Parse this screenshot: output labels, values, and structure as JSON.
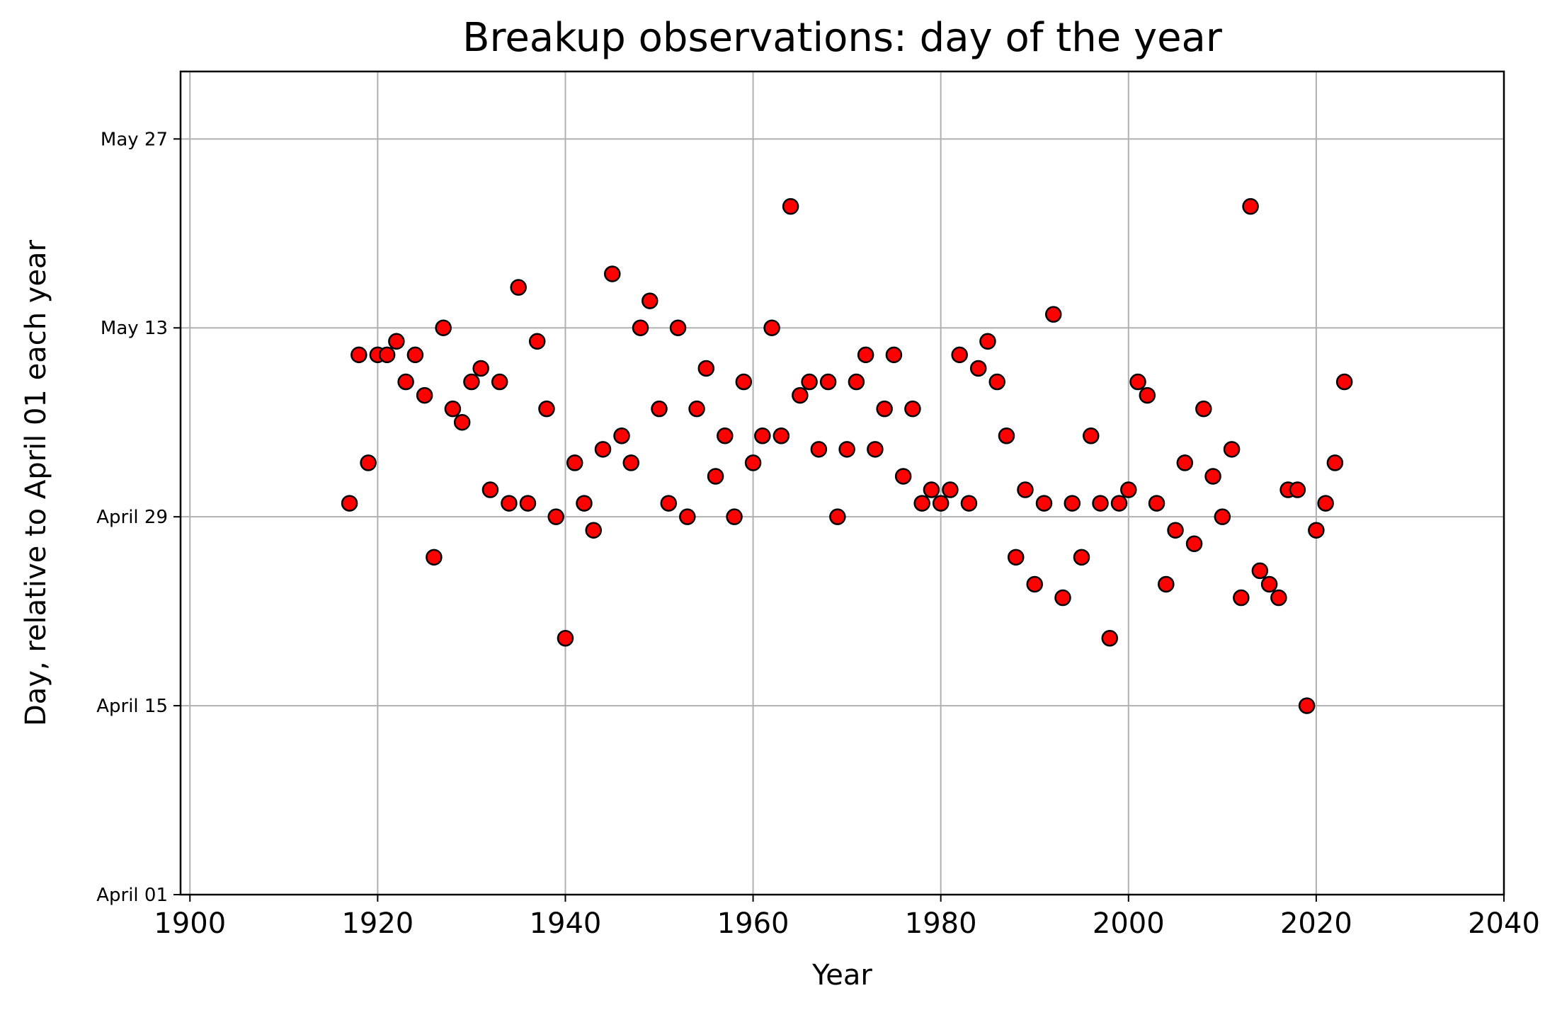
{
  "chart_data": {
    "type": "scatter",
    "title": "Breakup observations: day of the year",
    "xlabel": "Year",
    "ylabel": "Day, relative to April 01 each year",
    "xlim": [
      1899,
      2040
    ],
    "ylim_dates": [
      "April 01",
      "June 01"
    ],
    "x_ticks": [
      1900,
      1920,
      1940,
      1960,
      1980,
      2000,
      2020,
      2040
    ],
    "x_tick_labels": [
      "1900",
      "1920",
      "1940",
      "1960",
      "1980",
      "2000",
      "2020",
      "2040"
    ],
    "y_ticks": [
      "April 01",
      "April 15",
      "April 29",
      "May 13",
      "May 27"
    ],
    "y_tick_labels": [
      "April 01",
      "April 15",
      "April 29",
      "May 13",
      "May 27"
    ],
    "grid": true,
    "marker_color": "#ff0000",
    "marker_edge_color": "#000000",
    "points": [
      {
        "x": 1917,
        "y": "April 30"
      },
      {
        "x": 1918,
        "y": "May 11"
      },
      {
        "x": 1919,
        "y": "May 3"
      },
      {
        "x": 1920,
        "y": "May 11"
      },
      {
        "x": 1921,
        "y": "May 11"
      },
      {
        "x": 1922,
        "y": "May 12"
      },
      {
        "x": 1923,
        "y": "May 9"
      },
      {
        "x": 1924,
        "y": "May 11"
      },
      {
        "x": 1925,
        "y": "May 8"
      },
      {
        "x": 1926,
        "y": "April 26"
      },
      {
        "x": 1927,
        "y": "May 13"
      },
      {
        "x": 1928,
        "y": "May 7"
      },
      {
        "x": 1929,
        "y": "May 6"
      },
      {
        "x": 1930,
        "y": "May 9"
      },
      {
        "x": 1931,
        "y": "May 10"
      },
      {
        "x": 1932,
        "y": "May 1"
      },
      {
        "x": 1933,
        "y": "May 9"
      },
      {
        "x": 1934,
        "y": "April 30"
      },
      {
        "x": 1935,
        "y": "May 16"
      },
      {
        "x": 1936,
        "y": "April 30"
      },
      {
        "x": 1937,
        "y": "May 12"
      },
      {
        "x": 1938,
        "y": "May 7"
      },
      {
        "x": 1939,
        "y": "April 29"
      },
      {
        "x": 1940,
        "y": "April 20"
      },
      {
        "x": 1941,
        "y": "May 3"
      },
      {
        "x": 1942,
        "y": "April 30"
      },
      {
        "x": 1943,
        "y": "April 28"
      },
      {
        "x": 1944,
        "y": "May 4"
      },
      {
        "x": 1945,
        "y": "May 17"
      },
      {
        "x": 1946,
        "y": "May 5"
      },
      {
        "x": 1947,
        "y": "May 3"
      },
      {
        "x": 1948,
        "y": "May 13"
      },
      {
        "x": 1949,
        "y": "May 15"
      },
      {
        "x": 1950,
        "y": "May 7"
      },
      {
        "x": 1951,
        "y": "April 30"
      },
      {
        "x": 1952,
        "y": "May 13"
      },
      {
        "x": 1953,
        "y": "April 29"
      },
      {
        "x": 1954,
        "y": "May 7"
      },
      {
        "x": 1955,
        "y": "May 10"
      },
      {
        "x": 1956,
        "y": "May 2"
      },
      {
        "x": 1957,
        "y": "May 5"
      },
      {
        "x": 1958,
        "y": "April 29"
      },
      {
        "x": 1959,
        "y": "May 9"
      },
      {
        "x": 1960,
        "y": "May 3"
      },
      {
        "x": 1961,
        "y": "May 5"
      },
      {
        "x": 1962,
        "y": "May 13"
      },
      {
        "x": 1963,
        "y": "May 5"
      },
      {
        "x": 1964,
        "y": "May 22"
      },
      {
        "x": 1965,
        "y": "May 8"
      },
      {
        "x": 1966,
        "y": "May 9"
      },
      {
        "x": 1967,
        "y": "May 4"
      },
      {
        "x": 1968,
        "y": "May 9"
      },
      {
        "x": 1969,
        "y": "April 29"
      },
      {
        "x": 1970,
        "y": "May 4"
      },
      {
        "x": 1971,
        "y": "May 9"
      },
      {
        "x": 1972,
        "y": "May 11"
      },
      {
        "x": 1973,
        "y": "May 4"
      },
      {
        "x": 1974,
        "y": "May 7"
      },
      {
        "x": 1975,
        "y": "May 11"
      },
      {
        "x": 1976,
        "y": "May 2"
      },
      {
        "x": 1977,
        "y": "May 7"
      },
      {
        "x": 1978,
        "y": "April 30"
      },
      {
        "x": 1979,
        "y": "May 1"
      },
      {
        "x": 1980,
        "y": "April 30"
      },
      {
        "x": 1981,
        "y": "May 1"
      },
      {
        "x": 1982,
        "y": "May 11"
      },
      {
        "x": 1983,
        "y": "April 30"
      },
      {
        "x": 1984,
        "y": "May 10"
      },
      {
        "x": 1985,
        "y": "May 12"
      },
      {
        "x": 1986,
        "y": "May 9"
      },
      {
        "x": 1987,
        "y": "May 5"
      },
      {
        "x": 1988,
        "y": "April 26"
      },
      {
        "x": 1989,
        "y": "May 1"
      },
      {
        "x": 1990,
        "y": "April 24"
      },
      {
        "x": 1991,
        "y": "April 30"
      },
      {
        "x": 1992,
        "y": "May 14"
      },
      {
        "x": 1993,
        "y": "April 23"
      },
      {
        "x": 1994,
        "y": "April 30"
      },
      {
        "x": 1995,
        "y": "April 26"
      },
      {
        "x": 1996,
        "y": "May 5"
      },
      {
        "x": 1997,
        "y": "April 30"
      },
      {
        "x": 1998,
        "y": "April 20"
      },
      {
        "x": 1999,
        "y": "April 30"
      },
      {
        "x": 2000,
        "y": "May 1"
      },
      {
        "x": 2001,
        "y": "May 9"
      },
      {
        "x": 2002,
        "y": "May 8"
      },
      {
        "x": 2003,
        "y": "April 30"
      },
      {
        "x": 2004,
        "y": "April 24"
      },
      {
        "x": 2005,
        "y": "April 28"
      },
      {
        "x": 2006,
        "y": "May 3"
      },
      {
        "x": 2007,
        "y": "April 27"
      },
      {
        "x": 2008,
        "y": "May 7"
      },
      {
        "x": 2009,
        "y": "May 2"
      },
      {
        "x": 2010,
        "y": "April 29"
      },
      {
        "x": 2011,
        "y": "May 4"
      },
      {
        "x": 2012,
        "y": "April 23"
      },
      {
        "x": 2013,
        "y": "May 22"
      },
      {
        "x": 2014,
        "y": "April 25"
      },
      {
        "x": 2015,
        "y": "April 24"
      },
      {
        "x": 2016,
        "y": "April 23"
      },
      {
        "x": 2017,
        "y": "May 1"
      },
      {
        "x": 2018,
        "y": "May 1"
      },
      {
        "x": 2019,
        "y": "April 15"
      },
      {
        "x": 2020,
        "y": "April 28"
      },
      {
        "x": 2021,
        "y": "April 30"
      },
      {
        "x": 2022,
        "y": "May 3"
      },
      {
        "x": 2023,
        "y": "May 9"
      }
    ]
  }
}
